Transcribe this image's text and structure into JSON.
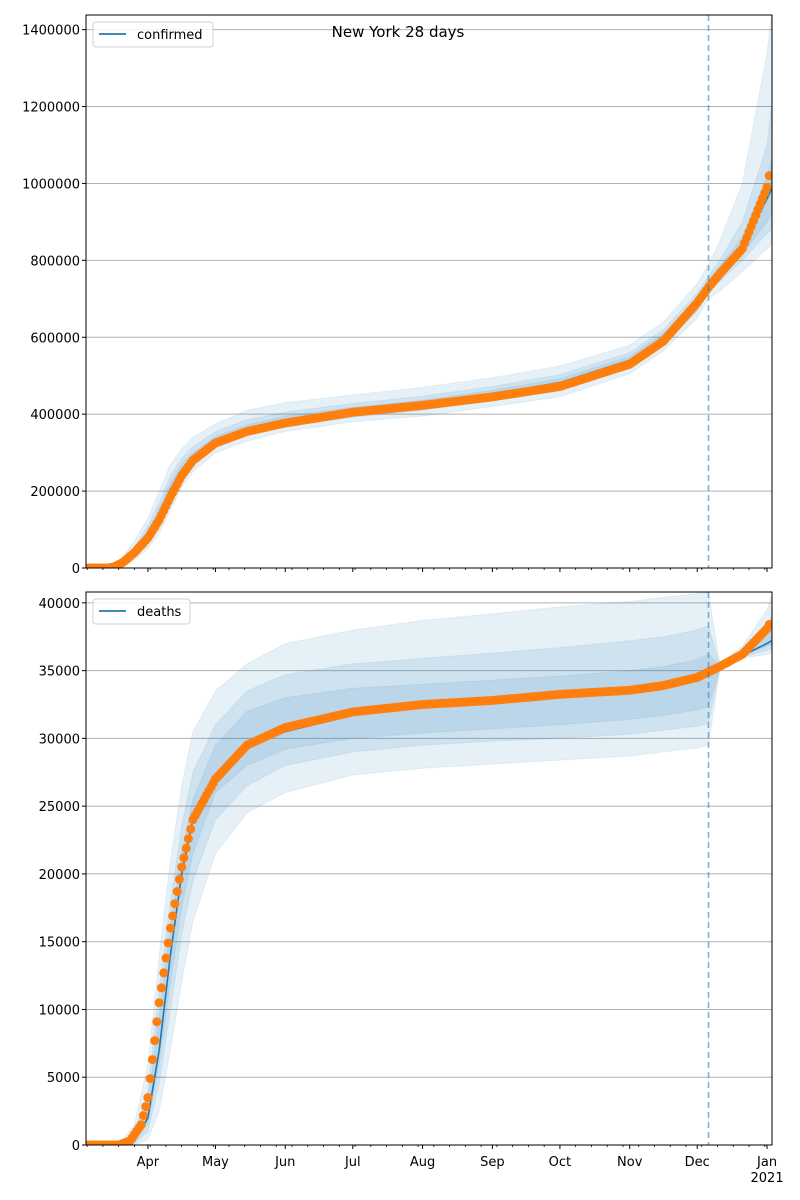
{
  "chart_data": [
    {
      "type": "line",
      "title": "New York 28 days",
      "legend": {
        "label": "confirmed",
        "placement": "top-left"
      },
      "x_unit": "day of year 2020 (Jan 1 = 0)",
      "xlim": [
        63.5,
        368.2
      ],
      "ylim": [
        0,
        1438000
      ],
      "yticks": [
        0,
        200000,
        400000,
        600000,
        800000,
        1000000,
        1200000,
        1400000
      ],
      "ytick_labels": [
        "0",
        "200000",
        "400000",
        "600000",
        "800000",
        "1000000",
        "1200000",
        "1400000"
      ],
      "grid": "horizontal",
      "forecast_start_day": 340,
      "model": {
        "x": [
          63,
          75,
          80,
          85,
          91,
          96,
          101,
          106,
          111,
          121,
          135,
          152,
          182,
          213,
          244,
          274,
          305,
          320,
          335,
          340,
          345,
          355,
          366,
          368
        ],
        "y": [
          0,
          2000,
          15000,
          40000,
          85000,
          140000,
          205000,
          255000,
          285000,
          330000,
          360000,
          385000,
          410000,
          428000,
          452000,
          482000,
          540000,
          600000,
          690000,
          740000,
          775000,
          835000,
          960000,
          985000
        ]
      },
      "bands": [
        {
          "level": "outer",
          "lo": [
            0,
            0,
            5000,
            20000,
            50000,
            90000,
            150000,
            210000,
            250000,
            300000,
            330000,
            355000,
            380000,
            395000,
            420000,
            445000,
            505000,
            565000,
            650000,
            700000,
            720000,
            770000,
            830000,
            840000
          ],
          "hi": [
            0,
            5000,
            30000,
            70000,
            130000,
            200000,
            270000,
            310000,
            340000,
            375000,
            410000,
            430000,
            450000,
            470000,
            495000,
            525000,
            580000,
            640000,
            740000,
            790000,
            850000,
            1000000,
            1340000,
            1440000
          ]
        },
        {
          "level": "middle",
          "lo": [
            0,
            1000,
            9000,
            28000,
            65000,
            110000,
            175000,
            230000,
            265000,
            315000,
            345000,
            368000,
            392000,
            410000,
            435000,
            462000,
            520000,
            582000,
            668000,
            720000,
            745000,
            800000,
            870000,
            880000
          ],
          "hi": [
            0,
            3000,
            22000,
            55000,
            110000,
            170000,
            240000,
            285000,
            315000,
            355000,
            385000,
            405000,
            428000,
            447000,
            472000,
            503000,
            560000,
            620000,
            715000,
            760000,
            800000,
            900000,
            1100000,
            1200000
          ]
        },
        {
          "level": "inner",
          "lo": [
            0,
            2000,
            12000,
            33000,
            73000,
            125000,
            188000,
            240000,
            272000,
            320000,
            350000,
            375000,
            400000,
            418000,
            442000,
            470000,
            530000,
            590000,
            678000,
            730000,
            765000,
            815000,
            900000,
            920000
          ],
          "hi": [
            0,
            2000,
            18000,
            47000,
            97000,
            155000,
            222000,
            270000,
            300000,
            342000,
            372000,
            395000,
            418000,
            436000,
            462000,
            492000,
            550000,
            610000,
            702000,
            750000,
            785000,
            860000,
            1020000,
            1060000
          ]
        }
      ],
      "observed": {
        "x": [
          63,
          73,
          76,
          80,
          85,
          91,
          96,
          101,
          106,
          111,
          121,
          135,
          152,
          182,
          213,
          244,
          274,
          305,
          320,
          335,
          340,
          345,
          355,
          366,
          367
        ],
        "y": [
          0,
          0,
          3000,
          15000,
          40000,
          78000,
          125000,
          185000,
          240000,
          280000,
          325000,
          355000,
          377000,
          405000,
          423000,
          445000,
          472000,
          530000,
          590000,
          690000,
          730000,
          765000,
          830000,
          990000,
          1020000
        ]
      }
    },
    {
      "type": "line",
      "title": "",
      "legend": {
        "label": "deaths",
        "placement": "top-left"
      },
      "x_unit": "day of year 2020 (Jan 1 = 0)",
      "xlim": [
        63.5,
        368.2
      ],
      "ylim": [
        0,
        40800
      ],
      "yticks": [
        0,
        5000,
        10000,
        15000,
        20000,
        25000,
        30000,
        35000,
        40000
      ],
      "ytick_labels": [
        "0",
        "5000",
        "10000",
        "15000",
        "20000",
        "25000",
        "30000",
        "35000",
        "40000"
      ],
      "xticks": [
        91,
        121,
        152,
        182,
        213,
        244,
        274,
        305,
        335,
        366
      ],
      "xtick_labels": [
        "Apr",
        "May",
        "Jun",
        "Jul",
        "Aug",
        "Sep",
        "Oct",
        "Nov",
        "Dec",
        "Jan"
      ],
      "xtick_year_label": "2021",
      "grid": "horizontal",
      "forecast_start_day": 340,
      "model": {
        "x": [
          63,
          78,
          85,
          91,
          96,
          101,
          106,
          111,
          121,
          135,
          152,
          182,
          213,
          244,
          274,
          305,
          320,
          335,
          340,
          345,
          355,
          366,
          368
        ],
        "y": [
          0,
          0,
          300,
          2000,
          7000,
          14000,
          20000,
          24000,
          27000,
          29300,
          30500,
          31700,
          32300,
          32600,
          33000,
          33400,
          33800,
          34500,
          34900,
          35300,
          36100,
          37000,
          37200
        ]
      },
      "bands": [
        {
          "level": "outer",
          "lo": [
            0,
            0,
            0,
            400,
            2500,
            7000,
            12000,
            16500,
            21500,
            24500,
            26000,
            27300,
            27800,
            28100,
            28400,
            28700,
            29000,
            29300,
            29500,
            35000,
            35900,
            36200,
            36300
          ],
          "hi": [
            0,
            0,
            1500,
            6000,
            14000,
            21000,
            26500,
            30500,
            33500,
            35500,
            37000,
            38000,
            38700,
            39200,
            39700,
            40100,
            40400,
            40700,
            40800,
            35500,
            36800,
            39500,
            40500
          ]
        },
        {
          "level": "middle",
          "lo": [
            0,
            0,
            100,
            1000,
            4500,
            10000,
            15500,
            19500,
            24000,
            26500,
            28000,
            29000,
            29500,
            29800,
            30000,
            30300,
            30600,
            30900,
            31100,
            35100,
            36000,
            36500,
            36600
          ],
          "hi": [
            0,
            0,
            900,
            4000,
            11500,
            18000,
            23500,
            27500,
            31000,
            33500,
            34700,
            35500,
            35900,
            36300,
            36700,
            37200,
            37500,
            38000,
            38300,
            35400,
            36500,
            38500,
            39000
          ]
        },
        {
          "level": "inner",
          "lo": [
            0,
            0,
            200,
            1600,
            6000,
            12000,
            17500,
            21500,
            26000,
            28000,
            29200,
            30000,
            30400,
            30700,
            31000,
            31400,
            31700,
            32100,
            32400,
            35100,
            36100,
            36800,
            36900
          ],
          "hi": [
            0,
            0,
            600,
            3000,
            9500,
            16000,
            21500,
            25500,
            29500,
            32000,
            33000,
            33700,
            34000,
            34300,
            34600,
            35000,
            35300,
            35800,
            36200,
            35300,
            36300,
            37700,
            38000
          ]
        }
      ],
      "observed": {
        "x": [
          63,
          78,
          83,
          88,
          91,
          96,
          101,
          106,
          111,
          121,
          135,
          152,
          182,
          213,
          244,
          274,
          305,
          320,
          335,
          340,
          345,
          355,
          366,
          367
        ],
        "y": [
          0,
          0,
          300,
          1500,
          3500,
          10500,
          16000,
          20500,
          24000,
          27000,
          29500,
          30800,
          31950,
          32500,
          32800,
          33250,
          33550,
          33900,
          34500,
          34900,
          35300,
          36200,
          38100,
          38400
        ]
      }
    }
  ],
  "colors": {
    "model": "#1f77b4",
    "observed": "#ff7f0e",
    "grid": "#b0b0b0"
  }
}
